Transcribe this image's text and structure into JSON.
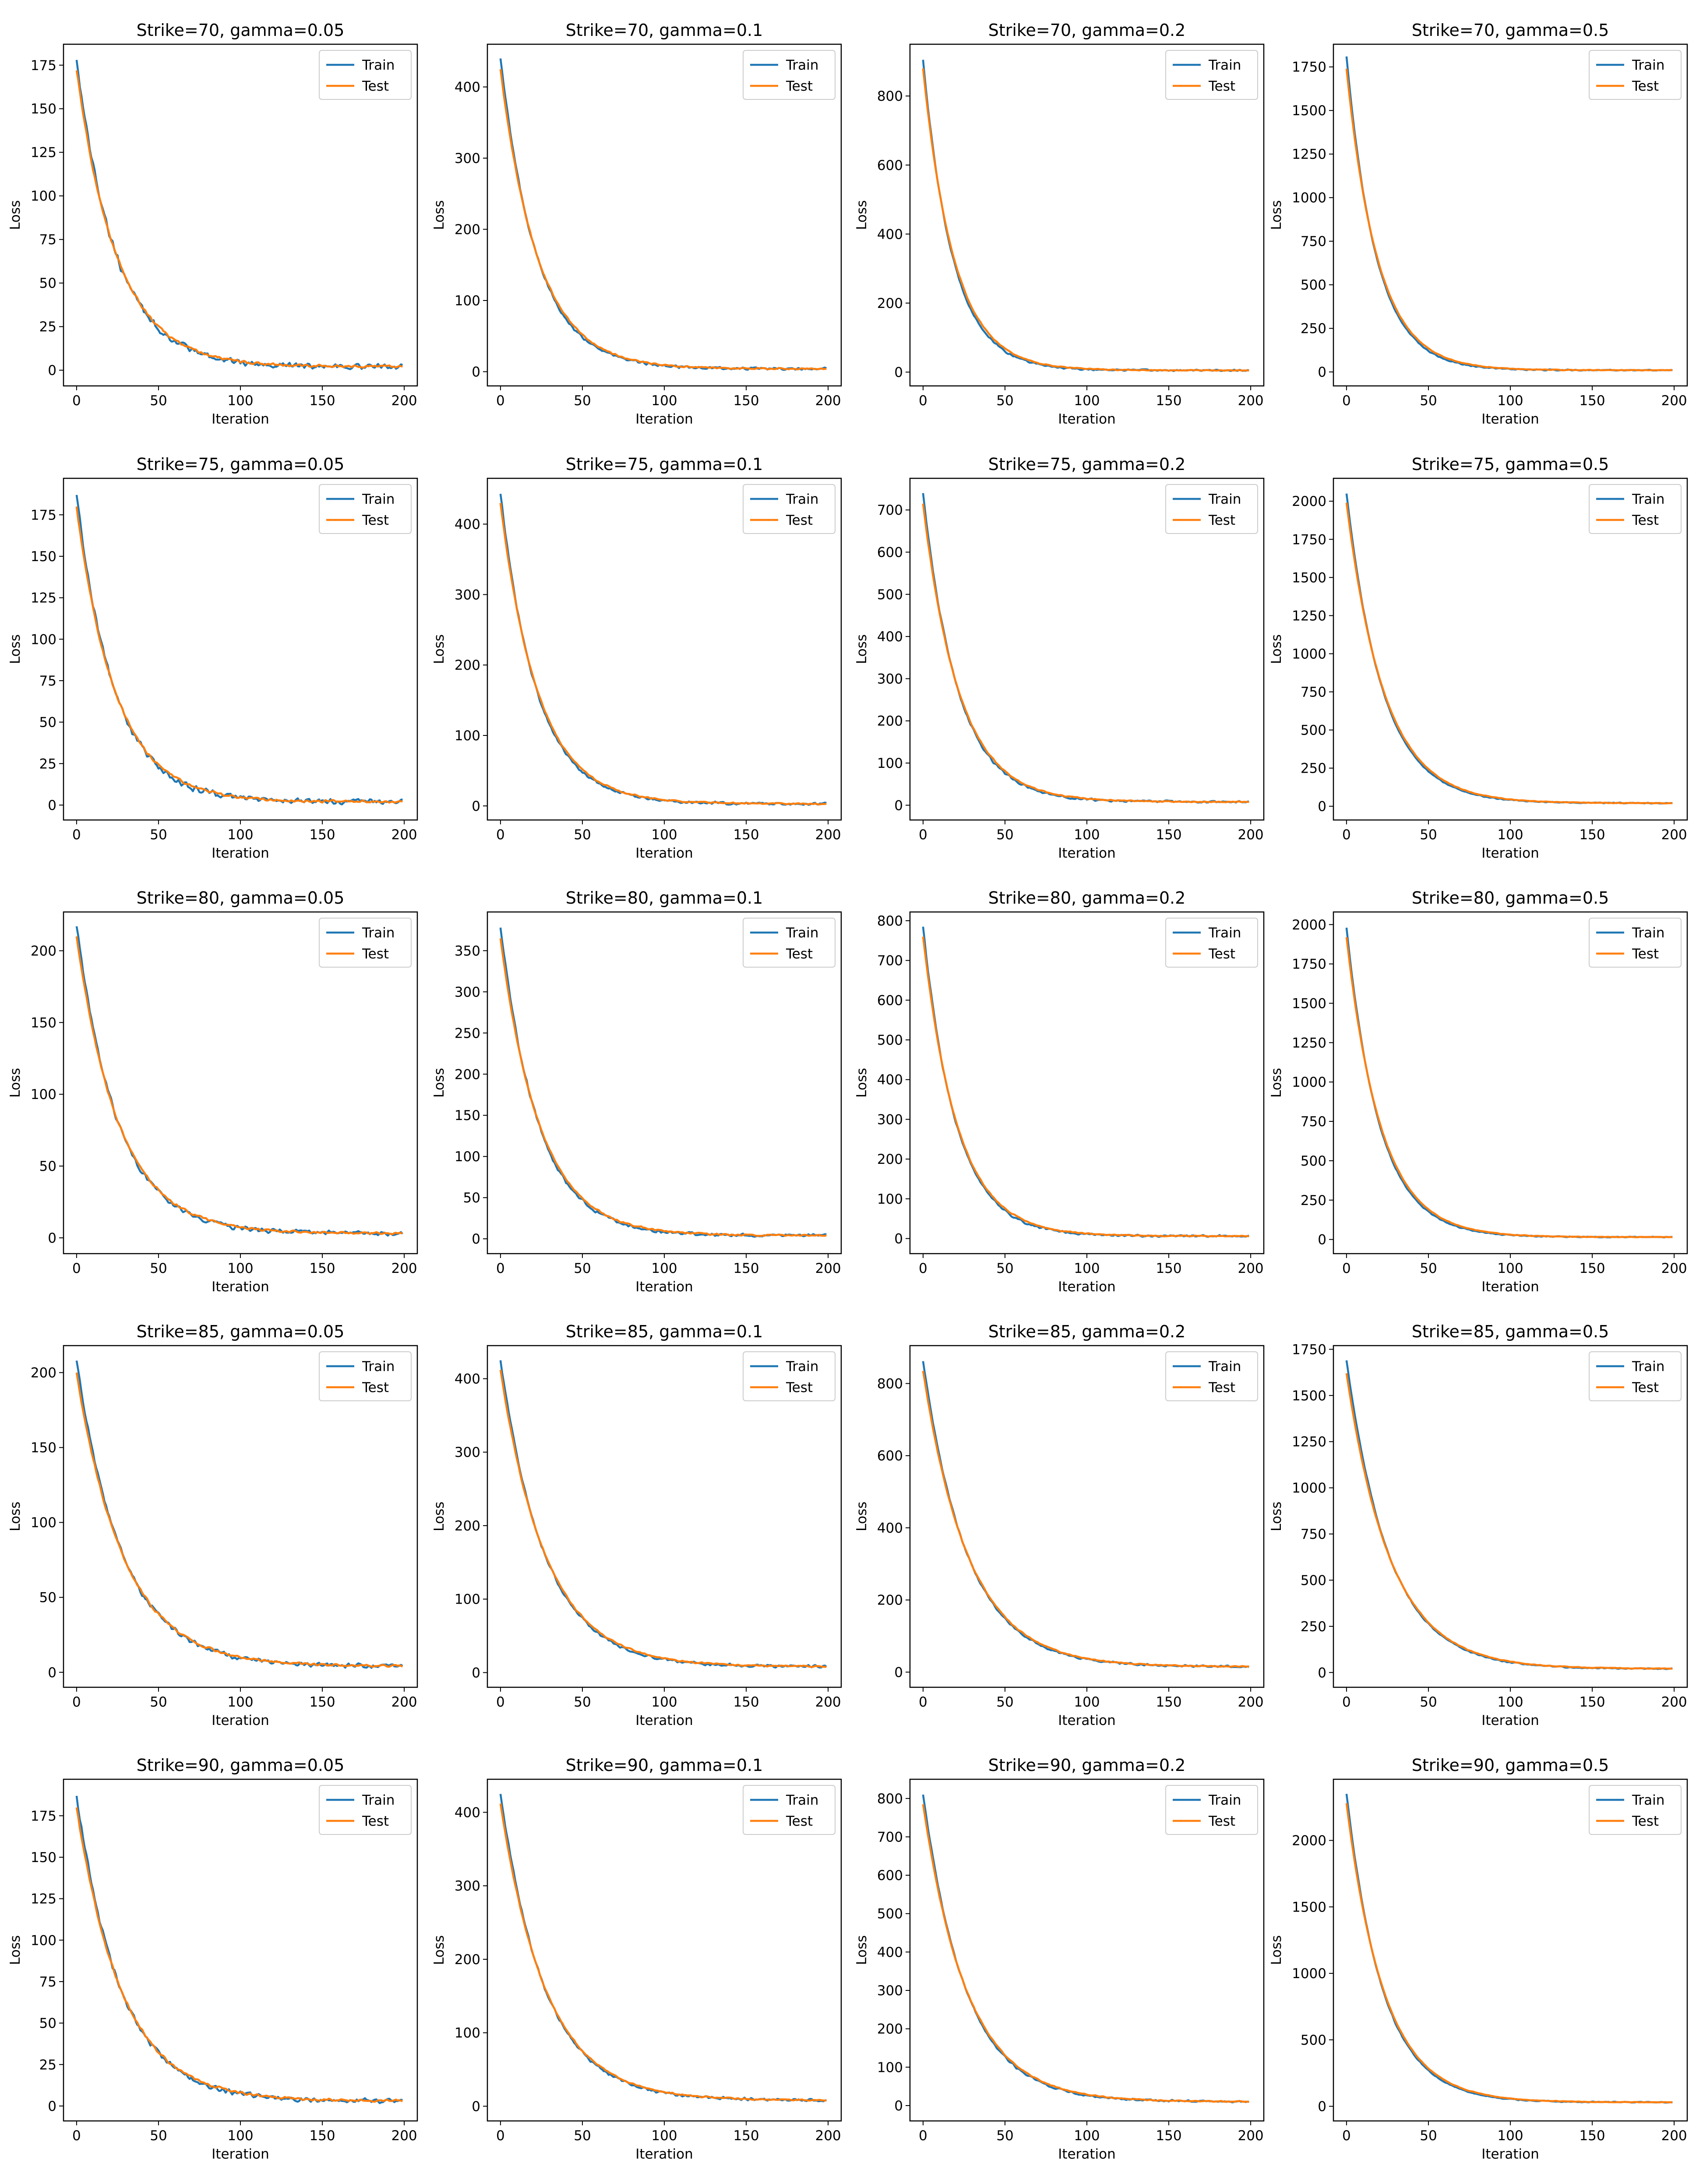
{
  "figure": {
    "rows": 5,
    "cols": 4,
    "colors": {
      "train": "#1f77b4",
      "test": "#ff7f0e",
      "axis": "#000000",
      "background": "#ffffff"
    }
  },
  "chart_data": [
    {
      "type": "line",
      "title": "Strike=70, gamma=0.05",
      "xlabel": "Iteration",
      "ylabel": "Loss",
      "xlim": [
        -8,
        208
      ],
      "ylim": [
        -9,
        187
      ],
      "xticks": [
        0,
        50,
        100,
        150,
        200
      ],
      "yticks": [
        0,
        25,
        50,
        75,
        100,
        125,
        150,
        175
      ],
      "legend": [
        "Train",
        "Test"
      ],
      "legend_position": "top-right",
      "x": {
        "start": 0,
        "end": 199,
        "step": 1
      },
      "series": [
        {
          "name": "Train",
          "start": 178,
          "end": 2,
          "decay": 24,
          "noise": 2.8
        },
        {
          "name": "Test",
          "start": 172,
          "end": 2,
          "decay": 25,
          "noise": 1.2
        }
      ]
    },
    {
      "type": "line",
      "title": "Strike=70, gamma=0.1",
      "xlabel": "Iteration",
      "ylabel": "Loss",
      "xlim": [
        -8,
        208
      ],
      "ylim": [
        -20,
        460
      ],
      "xticks": [
        0,
        50,
        100,
        150,
        200
      ],
      "yticks": [
        0,
        100,
        200,
        300,
        400
      ],
      "legend": [
        "Train",
        "Test"
      ],
      "legend_position": "top-right",
      "x": {
        "start": 0,
        "end": 199,
        "step": 1
      },
      "series": [
        {
          "name": "Train",
          "start": 440,
          "end": 4,
          "decay": 22,
          "noise": 3
        },
        {
          "name": "Test",
          "start": 425,
          "end": 4,
          "decay": 23,
          "noise": 1.5
        }
      ]
    },
    {
      "type": "line",
      "title": "Strike=70, gamma=0.2",
      "xlabel": "Iteration",
      "ylabel": "Loss",
      "xlim": [
        -8,
        208
      ],
      "ylim": [
        -40,
        950
      ],
      "xticks": [
        0,
        50,
        100,
        150,
        200
      ],
      "yticks": [
        0,
        200,
        400,
        600,
        800
      ],
      "legend": [
        "Train",
        "Test"
      ],
      "legend_position": "top-right",
      "x": {
        "start": 0,
        "end": 199,
        "step": 1
      },
      "series": [
        {
          "name": "Train",
          "start": 905,
          "end": 5,
          "decay": 18,
          "noise": 4
        },
        {
          "name": "Test",
          "start": 880,
          "end": 5,
          "decay": 19,
          "noise": 2
        }
      ]
    },
    {
      "type": "line",
      "title": "Strike=70, gamma=0.5",
      "xlabel": "Iteration",
      "ylabel": "Loss",
      "xlim": [
        -8,
        208
      ],
      "ylim": [
        -80,
        1880
      ],
      "xticks": [
        0,
        50,
        100,
        150,
        200
      ],
      "yticks": [
        0,
        250,
        500,
        750,
        1000,
        1250,
        1500,
        1750
      ],
      "legend": [
        "Train",
        "Test"
      ],
      "legend_position": "top-right",
      "x": {
        "start": 0,
        "end": 199,
        "step": 1
      },
      "series": [
        {
          "name": "Train",
          "start": 1810,
          "end": 10,
          "decay": 18,
          "noise": 5
        },
        {
          "name": "Test",
          "start": 1740,
          "end": 10,
          "decay": 19,
          "noise": 3
        }
      ]
    },
    {
      "type": "line",
      "title": "Strike=75, gamma=0.05",
      "xlabel": "Iteration",
      "ylabel": "Loss",
      "xlim": [
        -8,
        208
      ],
      "ylim": [
        -9,
        197
      ],
      "xticks": [
        0,
        50,
        100,
        150,
        200
      ],
      "yticks": [
        0,
        25,
        50,
        75,
        100,
        125,
        150,
        175
      ],
      "legend": [
        "Train",
        "Test"
      ],
      "legend_position": "top-right",
      "x": {
        "start": 0,
        "end": 199,
        "step": 1
      },
      "series": [
        {
          "name": "Train",
          "start": 187,
          "end": 2,
          "decay": 23,
          "noise": 2.8
        },
        {
          "name": "Test",
          "start": 180,
          "end": 2,
          "decay": 24,
          "noise": 1.2
        }
      ]
    },
    {
      "type": "line",
      "title": "Strike=75, gamma=0.1",
      "xlabel": "Iteration",
      "ylabel": "Loss",
      "xlim": [
        -8,
        208
      ],
      "ylim": [
        -20,
        465
      ],
      "xticks": [
        0,
        50,
        100,
        150,
        200
      ],
      "yticks": [
        0,
        100,
        200,
        300,
        400
      ],
      "legend": [
        "Train",
        "Test"
      ],
      "legend_position": "top-right",
      "x": {
        "start": 0,
        "end": 199,
        "step": 1
      },
      "series": [
        {
          "name": "Train",
          "start": 443,
          "end": 3,
          "decay": 22,
          "noise": 3
        },
        {
          "name": "Test",
          "start": 430,
          "end": 3,
          "decay": 23,
          "noise": 1.5
        }
      ]
    },
    {
      "type": "line",
      "title": "Strike=75, gamma=0.2",
      "xlabel": "Iteration",
      "ylabel": "Loss",
      "xlim": [
        -8,
        208
      ],
      "ylim": [
        -35,
        775
      ],
      "xticks": [
        0,
        50,
        100,
        150,
        200
      ],
      "yticks": [
        0,
        100,
        200,
        300,
        400,
        500,
        600,
        700
      ],
      "legend": [
        "Train",
        "Test"
      ],
      "legend_position": "top-right",
      "x": {
        "start": 0,
        "end": 199,
        "step": 1
      },
      "series": [
        {
          "name": "Train",
          "start": 740,
          "end": 8,
          "decay": 21,
          "noise": 4
        },
        {
          "name": "Test",
          "start": 715,
          "end": 8,
          "decay": 22,
          "noise": 2
        }
      ]
    },
    {
      "type": "line",
      "title": "Strike=75, gamma=0.5",
      "xlabel": "Iteration",
      "ylabel": "Loss",
      "xlim": [
        -8,
        208
      ],
      "ylim": [
        -90,
        2150
      ],
      "xticks": [
        0,
        50,
        100,
        150,
        200
      ],
      "yticks": [
        0,
        250,
        500,
        750,
        1000,
        1250,
        1500,
        1750,
        2000
      ],
      "legend": [
        "Train",
        "Test"
      ],
      "legend_position": "top-right",
      "x": {
        "start": 0,
        "end": 199,
        "step": 1
      },
      "series": [
        {
          "name": "Train",
          "start": 2050,
          "end": 20,
          "decay": 22,
          "noise": 5
        },
        {
          "name": "Test",
          "start": 1990,
          "end": 20,
          "decay": 23,
          "noise": 3
        }
      ]
    },
    {
      "type": "line",
      "title": "Strike=80, gamma=0.05",
      "xlabel": "Iteration",
      "ylabel": "Loss",
      "xlim": [
        -8,
        208
      ],
      "ylim": [
        -11,
        227
      ],
      "xticks": [
        0,
        50,
        100,
        150,
        200
      ],
      "yticks": [
        0,
        50,
        100,
        150,
        200
      ],
      "legend": [
        "Train",
        "Test"
      ],
      "legend_position": "top-right",
      "x": {
        "start": 0,
        "end": 199,
        "step": 1
      },
      "series": [
        {
          "name": "Train",
          "start": 217,
          "end": 3,
          "decay": 25,
          "noise": 2.5
        },
        {
          "name": "Test",
          "start": 210,
          "end": 3,
          "decay": 26,
          "noise": 1.2
        }
      ]
    },
    {
      "type": "line",
      "title": "Strike=80, gamma=0.1",
      "xlabel": "Iteration",
      "ylabel": "Loss",
      "xlim": [
        -8,
        208
      ],
      "ylim": [
        -18,
        397
      ],
      "xticks": [
        0,
        50,
        100,
        150,
        200
      ],
      "yticks": [
        0,
        50,
        100,
        150,
        200,
        250,
        300,
        350
      ],
      "legend": [
        "Train",
        "Test"
      ],
      "legend_position": "top-right",
      "x": {
        "start": 0,
        "end": 199,
        "step": 1
      },
      "series": [
        {
          "name": "Train",
          "start": 378,
          "end": 4,
          "decay": 23,
          "noise": 3
        },
        {
          "name": "Test",
          "start": 365,
          "end": 4,
          "decay": 24,
          "noise": 1.5
        }
      ]
    },
    {
      "type": "line",
      "title": "Strike=80, gamma=0.2",
      "xlabel": "Iteration",
      "ylabel": "Loss",
      "xlim": [
        -8,
        208
      ],
      "ylim": [
        -38,
        822
      ],
      "xticks": [
        0,
        50,
        100,
        150,
        200
      ],
      "yticks": [
        0,
        100,
        200,
        300,
        400,
        500,
        600,
        700,
        800
      ],
      "legend": [
        "Train",
        "Test"
      ],
      "legend_position": "top-right",
      "x": {
        "start": 0,
        "end": 199,
        "step": 1
      },
      "series": [
        {
          "name": "Train",
          "start": 785,
          "end": 6,
          "decay": 20,
          "noise": 4
        },
        {
          "name": "Test",
          "start": 760,
          "end": 6,
          "decay": 21,
          "noise": 2
        }
      ]
    },
    {
      "type": "line",
      "title": "Strike=80, gamma=0.5",
      "xlabel": "Iteration",
      "ylabel": "Loss",
      "xlim": [
        -8,
        208
      ],
      "ylim": [
        -90,
        2080
      ],
      "xticks": [
        0,
        50,
        100,
        150,
        200
      ],
      "yticks": [
        0,
        250,
        500,
        750,
        1000,
        1250,
        1500,
        1750,
        2000
      ],
      "legend": [
        "Train",
        "Test"
      ],
      "legend_position": "top-right",
      "x": {
        "start": 0,
        "end": 199,
        "step": 1
      },
      "series": [
        {
          "name": "Train",
          "start": 1980,
          "end": 15,
          "decay": 20,
          "noise": 5
        },
        {
          "name": "Test",
          "start": 1920,
          "end": 15,
          "decay": 21,
          "noise": 3
        }
      ]
    },
    {
      "type": "line",
      "title": "Strike=85, gamma=0.05",
      "xlabel": "Iteration",
      "ylabel": "Loss",
      "xlim": [
        -8,
        208
      ],
      "ylim": [
        -10,
        218
      ],
      "xticks": [
        0,
        50,
        100,
        150,
        200
      ],
      "yticks": [
        0,
        50,
        100,
        150,
        200
      ],
      "legend": [
        "Train",
        "Test"
      ],
      "legend_position": "top-right",
      "x": {
        "start": 0,
        "end": 199,
        "step": 1
      },
      "series": [
        {
          "name": "Train",
          "start": 208,
          "end": 4,
          "decay": 28,
          "noise": 2.5
        },
        {
          "name": "Test",
          "start": 200,
          "end": 4,
          "decay": 29,
          "noise": 1.2
        }
      ]
    },
    {
      "type": "line",
      "title": "Strike=85, gamma=0.1",
      "xlabel": "Iteration",
      "ylabel": "Loss",
      "xlim": [
        -8,
        208
      ],
      "ylim": [
        -20,
        445
      ],
      "xticks": [
        0,
        50,
        100,
        150,
        200
      ],
      "yticks": [
        0,
        100,
        200,
        300,
        400
      ],
      "legend": [
        "Train",
        "Test"
      ],
      "legend_position": "top-right",
      "x": {
        "start": 0,
        "end": 199,
        "step": 1
      },
      "series": [
        {
          "name": "Train",
          "start": 425,
          "end": 8,
          "decay": 27,
          "noise": 3
        },
        {
          "name": "Test",
          "start": 412,
          "end": 8,
          "decay": 28,
          "noise": 1.5
        }
      ]
    },
    {
      "type": "line",
      "title": "Strike=85, gamma=0.2",
      "xlabel": "Iteration",
      "ylabel": "Loss",
      "xlim": [
        -8,
        208
      ],
      "ylim": [
        -42,
        905
      ],
      "xticks": [
        0,
        50,
        100,
        150,
        200
      ],
      "yticks": [
        0,
        200,
        400,
        600,
        800
      ],
      "legend": [
        "Train",
        "Test"
      ],
      "legend_position": "top-right",
      "x": {
        "start": 0,
        "end": 199,
        "step": 1
      },
      "series": [
        {
          "name": "Train",
          "start": 862,
          "end": 15,
          "decay": 27,
          "noise": 4
        },
        {
          "name": "Test",
          "start": 835,
          "end": 15,
          "decay": 28,
          "noise": 2
        }
      ]
    },
    {
      "type": "line",
      "title": "Strike=85, gamma=0.5",
      "xlabel": "Iteration",
      "ylabel": "Loss",
      "xlim": [
        -8,
        208
      ],
      "ylim": [
        -80,
        1770
      ],
      "xticks": [
        0,
        50,
        100,
        150,
        200
      ],
      "yticks": [
        0,
        250,
        500,
        750,
        1000,
        1250,
        1500,
        1750
      ],
      "legend": [
        "Train",
        "Test"
      ],
      "legend_position": "top-right",
      "x": {
        "start": 0,
        "end": 199,
        "step": 1
      },
      "series": [
        {
          "name": "Train",
          "start": 1690,
          "end": 20,
          "decay": 26,
          "noise": 5
        },
        {
          "name": "Test",
          "start": 1620,
          "end": 20,
          "decay": 27,
          "noise": 3
        }
      ]
    },
    {
      "type": "line",
      "title": "Strike=90, gamma=0.05",
      "xlabel": "Iteration",
      "ylabel": "Loss",
      "xlim": [
        -8,
        208
      ],
      "ylim": [
        -9,
        197
      ],
      "xticks": [
        0,
        50,
        100,
        150,
        200
      ],
      "yticks": [
        0,
        25,
        50,
        75,
        100,
        125,
        150,
        175
      ],
      "legend": [
        "Train",
        "Test"
      ],
      "legend_position": "top-right",
      "x": {
        "start": 0,
        "end": 199,
        "step": 1
      },
      "series": [
        {
          "name": "Train",
          "start": 187,
          "end": 3,
          "decay": 27,
          "noise": 2.5
        },
        {
          "name": "Test",
          "start": 180,
          "end": 3,
          "decay": 28,
          "noise": 1.2
        }
      ]
    },
    {
      "type": "line",
      "title": "Strike=90, gamma=0.1",
      "xlabel": "Iteration",
      "ylabel": "Loss",
      "xlim": [
        -8,
        208
      ],
      "ylim": [
        -20,
        445
      ],
      "xticks": [
        0,
        50,
        100,
        150,
        200
      ],
      "yticks": [
        0,
        100,
        200,
        300,
        400
      ],
      "legend": [
        "Train",
        "Test"
      ],
      "legend_position": "top-right",
      "x": {
        "start": 0,
        "end": 199,
        "step": 1
      },
      "series": [
        {
          "name": "Train",
          "start": 425,
          "end": 8,
          "decay": 27,
          "noise": 3
        },
        {
          "name": "Test",
          "start": 412,
          "end": 8,
          "decay": 28,
          "noise": 1.5
        }
      ]
    },
    {
      "type": "line",
      "title": "Strike=90, gamma=0.2",
      "xlabel": "Iteration",
      "ylabel": "Loss",
      "xlim": [
        -8,
        208
      ],
      "ylim": [
        -40,
        850
      ],
      "xticks": [
        0,
        50,
        100,
        150,
        200
      ],
      "yticks": [
        0,
        100,
        200,
        300,
        400,
        500,
        600,
        700,
        800
      ],
      "legend": [
        "Train",
        "Test"
      ],
      "legend_position": "top-right",
      "x": {
        "start": 0,
        "end": 199,
        "step": 1
      },
      "series": [
        {
          "name": "Train",
          "start": 810,
          "end": 10,
          "decay": 26,
          "noise": 4
        },
        {
          "name": "Test",
          "start": 785,
          "end": 10,
          "decay": 27,
          "noise": 2
        }
      ]
    },
    {
      "type": "line",
      "title": "Strike=90, gamma=0.5",
      "xlabel": "Iteration",
      "ylabel": "Loss",
      "xlim": [
        -8,
        208
      ],
      "ylim": [
        -110,
        2460
      ],
      "xticks": [
        0,
        50,
        100,
        150,
        200
      ],
      "yticks": [
        0,
        500,
        1000,
        1500,
        2000
      ],
      "legend": [
        "Train",
        "Test"
      ],
      "legend_position": "top-right",
      "x": {
        "start": 0,
        "end": 199,
        "step": 1
      },
      "series": [
        {
          "name": "Train",
          "start": 2350,
          "end": 30,
          "decay": 22,
          "noise": 6
        },
        {
          "name": "Test",
          "start": 2280,
          "end": 30,
          "decay": 23,
          "noise": 3
        }
      ]
    }
  ]
}
